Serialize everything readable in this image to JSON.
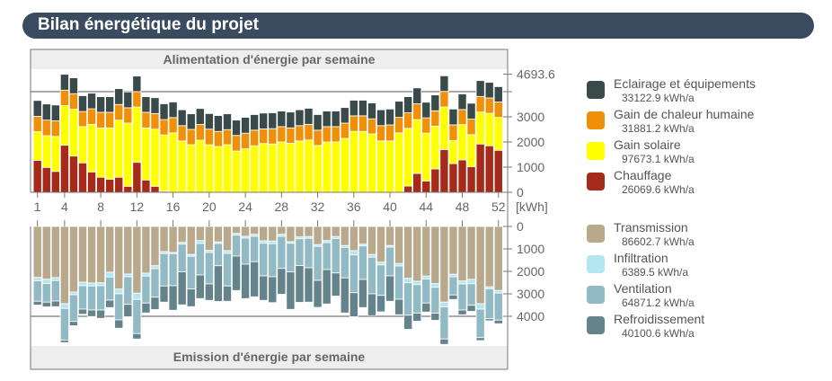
{
  "header": {
    "title": "Bilan énergétique du projet"
  },
  "chart_data": [
    {
      "type": "bar",
      "stacked": true,
      "title": "Alimentation d'énergie par semaine",
      "unit": "[kWh]",
      "categories_ticks": [
        "1",
        "4",
        "8",
        "12",
        "16",
        "20",
        "24",
        "28",
        "32",
        "36",
        "40",
        "44",
        "48",
        "52"
      ],
      "y_ticks": [
        "0",
        "1000",
        "2000",
        "3000",
        "4693.6"
      ],
      "ylim": [
        0,
        4693.6
      ],
      "series": [
        {
          "name": "Chauffage",
          "total": "26069.6 kWh/a",
          "color": "#a52a1a",
          "values": [
            1270,
            990,
            830,
            1870,
            1440,
            1170,
            810,
            600,
            520,
            600,
            240,
            1190,
            490,
            240,
            40,
            0,
            0,
            0,
            0,
            0,
            0,
            0,
            0,
            0,
            0,
            0,
            0,
            0,
            0,
            0,
            0,
            0,
            0,
            0,
            0,
            0,
            0,
            0,
            0,
            0,
            0,
            250,
            750,
            450,
            930,
            1700,
            1140,
            1290,
            1020,
            1920,
            1850,
            1670
          ]
        },
        {
          "name": "Gain solaire",
          "total": "97673.1 kWh/a",
          "color": "#ffff00",
          "values": [
            1140,
            1260,
            1390,
            1580,
            1860,
            1440,
            1890,
            1960,
            2040,
            2270,
            2510,
            2200,
            2070,
            2270,
            2240,
            2360,
            2040,
            1890,
            2070,
            1890,
            1820,
            1890,
            1640,
            1730,
            1850,
            1940,
            1920,
            2000,
            1950,
            2040,
            2080,
            1860,
            2000,
            2000,
            2140,
            2420,
            2420,
            2320,
            2040,
            2040,
            2360,
            2290,
            2140,
            1900,
            1700,
            1690,
            920,
            1400,
            1270,
            1270,
            1290,
            1310
          ]
        },
        {
          "name": "Gain de chaleur humaine",
          "total": "31881.2 kWh/a",
          "color": "#f0900a",
          "values": [
            610,
            620,
            620,
            610,
            620,
            600,
            620,
            620,
            620,
            620,
            610,
            610,
            620,
            620,
            610,
            610,
            610,
            610,
            630,
            620,
            600,
            600,
            620,
            620,
            620,
            580,
            610,
            610,
            610,
            610,
            620,
            610,
            610,
            610,
            610,
            620,
            620,
            600,
            610,
            640,
            620,
            620,
            630,
            610,
            610,
            620,
            620,
            600,
            620,
            620,
            610,
            610
          ]
        },
        {
          "name": "Eclairage et équipements",
          "total": "33122.9 kWh/a",
          "color": "#3a4a4a",
          "values": [
            630,
            640,
            630,
            630,
            630,
            630,
            620,
            620,
            620,
            630,
            630,
            620,
            620,
            630,
            630,
            620,
            630,
            620,
            630,
            620,
            630,
            630,
            610,
            630,
            620,
            630,
            630,
            620,
            630,
            630,
            640,
            620,
            620,
            620,
            620,
            620,
            620,
            630,
            630,
            630,
            640,
            640,
            630,
            620,
            630,
            620,
            630,
            620,
            630,
            630,
            620,
            610
          ]
        }
      ]
    },
    {
      "type": "bar",
      "stacked": true,
      "title": "Emission d'énergie par semaine",
      "y_ticks": [
        "0",
        "1000",
        "2000",
        "3000",
        "4000"
      ],
      "ylim": [
        0,
        5300
      ],
      "inverted": true,
      "series": [
        {
          "name": "Transmission",
          "total": "86602.7 kWh/a",
          "color": "#b8a88c",
          "values": [
            2270,
            2350,
            2280,
            3440,
            2920,
            2480,
            2520,
            2510,
            2040,
            2790,
            2120,
            2970,
            2080,
            1750,
            1120,
            1160,
            710,
            1250,
            630,
            1070,
            690,
            1080,
            310,
            440,
            350,
            640,
            650,
            350,
            680,
            470,
            450,
            810,
            630,
            450,
            850,
            1080,
            790,
            1250,
            1590,
            850,
            1650,
            2310,
            2440,
            2210,
            2550,
            3370,
            2130,
            2430,
            2360,
            3440,
            2690,
            2850
          ]
        },
        {
          "name": "Infiltration",
          "total": "6389.5 kWh/a",
          "color": "#b3e6f2",
          "values": [
            150,
            190,
            130,
            210,
            120,
            160,
            130,
            130,
            210,
            210,
            120,
            280,
            130,
            130,
            90,
            50,
            80,
            80,
            130,
            90,
            70,
            120,
            80,
            80,
            90,
            110,
            120,
            90,
            70,
            80,
            80,
            80,
            90,
            90,
            80,
            190,
            80,
            120,
            120,
            70,
            110,
            200,
            150,
            130,
            160,
            210,
            110,
            130,
            190,
            240,
            90,
            120
          ]
        },
        {
          "name": "Ventilation",
          "total": "64871.2 kWh/a",
          "color": "#92bac4",
          "values": [
            910,
            830,
            910,
            1410,
            1190,
            1040,
            1070,
            1080,
            1030,
            1160,
            1230,
            1520,
            1200,
            1270,
            1440,
            1430,
            1230,
            1450,
            1400,
            1400,
            990,
            1450,
            930,
            1160,
            1130,
            1450,
            1470,
            1430,
            1270,
            1190,
            1310,
            1510,
            1200,
            1530,
            1360,
            1680,
            1490,
            1630,
            1360,
            1280,
            1480,
            1440,
            1270,
            1070,
            1150,
            1430,
            810,
            1160,
            960,
            1270,
            1330,
            1200
          ]
        },
        {
          "name": "Refroidissement",
          "total": "40100.6 kWh/a",
          "color": "#64838a",
          "values": [
            170,
            210,
            250,
            110,
            190,
            230,
            290,
            370,
            330,
            370,
            550,
            240,
            440,
            550,
            720,
            1090,
            1470,
            790,
            1050,
            730,
            1590,
            680,
            1530,
            1530,
            1560,
            1090,
            1150,
            1150,
            1670,
            1640,
            1530,
            1200,
            1530,
            1030,
            1560,
            1070,
            1250,
            970,
            730,
            1130,
            690,
            630,
            360,
            400,
            320,
            240,
            200,
            210,
            270,
            130,
            90,
            160
          ]
        }
      ]
    }
  ]
}
